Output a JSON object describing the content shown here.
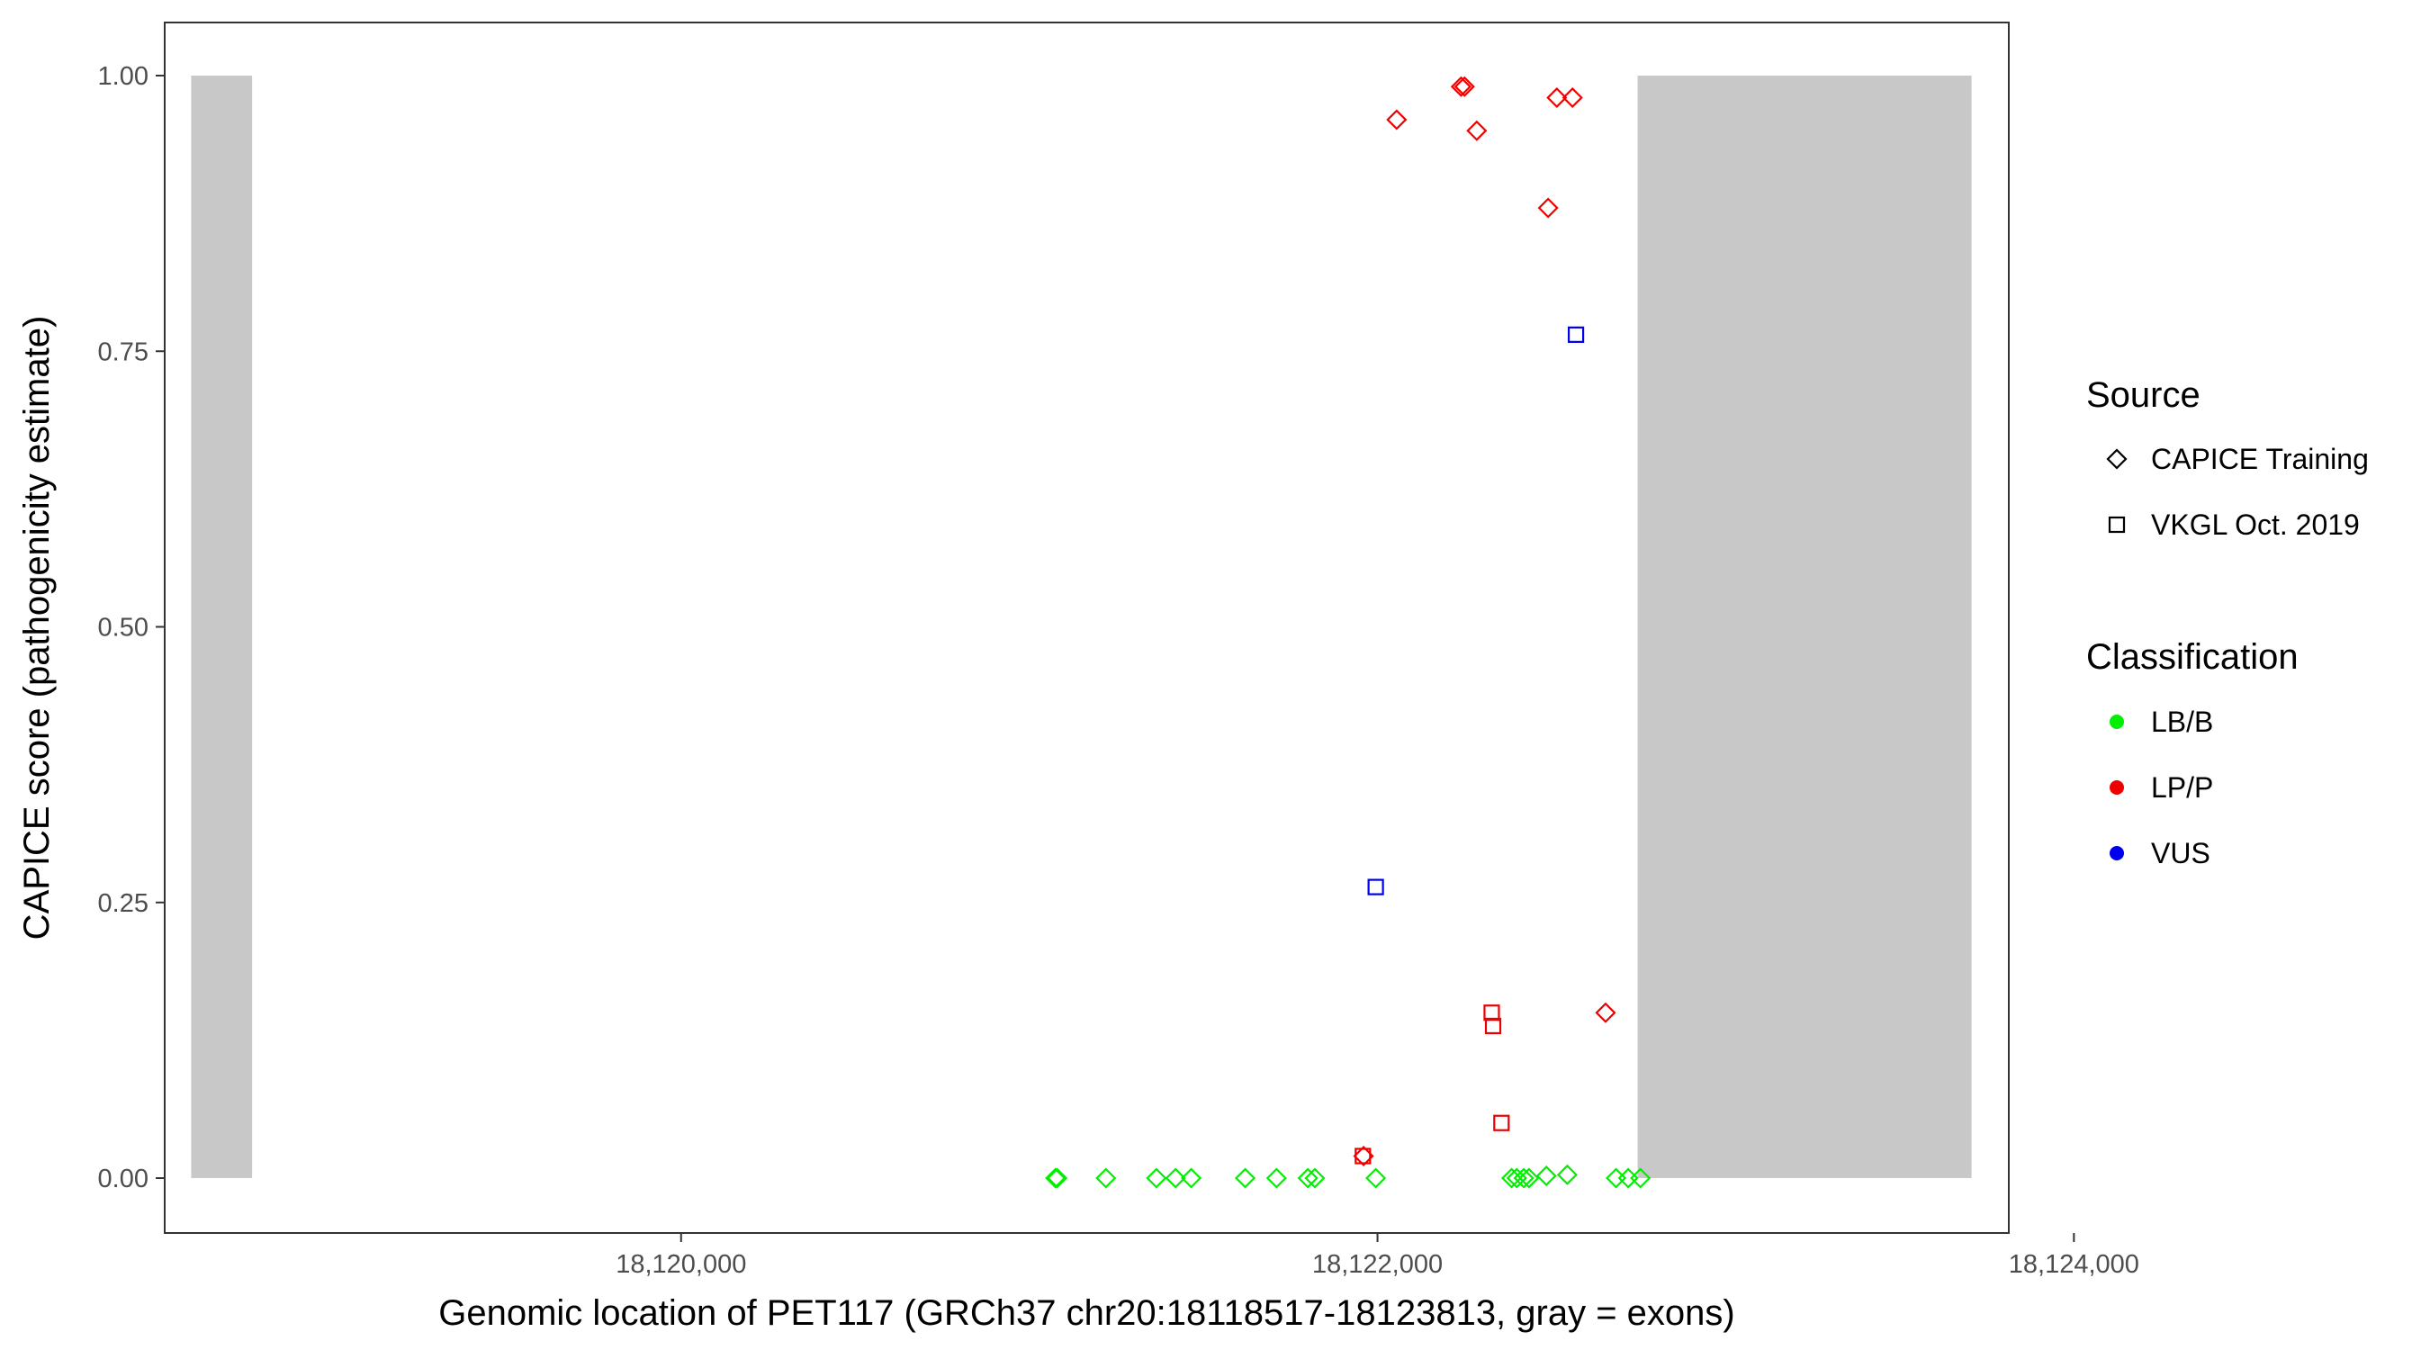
{
  "chart_data": {
    "type": "scatter",
    "title": "",
    "xlabel": "Genomic location of PET117 (GRCh37 chr20:18118517-18123813, gray = exons)",
    "ylabel": "CAPICE score (pathogenicity estimate)",
    "xlim": [
      18118517,
      18123813
    ],
    "ylim": [
      0,
      1
    ],
    "x_ticks": [
      {
        "value": 18120000,
        "label": "18,120,000"
      },
      {
        "value": 18122000,
        "label": "18,122,000"
      },
      {
        "value": 18124000,
        "label": "18,124,000"
      }
    ],
    "y_ticks": [
      {
        "value": 0,
        "label": "0.00"
      },
      {
        "value": 0.25,
        "label": "0.25"
      },
      {
        "value": 0.5,
        "label": "0.50"
      },
      {
        "value": 0.75,
        "label": "0.75"
      },
      {
        "value": 1,
        "label": "1.00"
      }
    ],
    "grid": false,
    "exons": [
      {
        "start": 18118593,
        "end": 18118768
      },
      {
        "start": 18122747,
        "end": 18123706
      }
    ],
    "exon_color": "#c8c8c8",
    "points": [
      {
        "x": 18121075,
        "y": 0.0,
        "source": "CAPICE Training",
        "class": "LB/B"
      },
      {
        "x": 18121080,
        "y": 0.0,
        "source": "CAPICE Training",
        "class": "LB/B"
      },
      {
        "x": 18121220,
        "y": 0.0,
        "source": "CAPICE Training",
        "class": "LB/B"
      },
      {
        "x": 18121365,
        "y": 0.0,
        "source": "CAPICE Training",
        "class": "LB/B"
      },
      {
        "x": 18121420,
        "y": 0.0,
        "source": "CAPICE Training",
        "class": "LB/B"
      },
      {
        "x": 18121465,
        "y": 0.0,
        "source": "CAPICE Training",
        "class": "LB/B"
      },
      {
        "x": 18121620,
        "y": 0.0,
        "source": "CAPICE Training",
        "class": "LB/B"
      },
      {
        "x": 18121710,
        "y": 0.0,
        "source": "CAPICE Training",
        "class": "LB/B"
      },
      {
        "x": 18121800,
        "y": 0.0,
        "source": "CAPICE Training",
        "class": "LB/B"
      },
      {
        "x": 18121820,
        "y": 0.0,
        "source": "CAPICE Training",
        "class": "LB/B"
      },
      {
        "x": 18121995,
        "y": 0.0,
        "source": "CAPICE Training",
        "class": "LB/B"
      },
      {
        "x": 18122385,
        "y": 0.0,
        "source": "CAPICE Training",
        "class": "LB/B"
      },
      {
        "x": 18122400,
        "y": 0.0,
        "source": "CAPICE Training",
        "class": "LB/B"
      },
      {
        "x": 18122420,
        "y": 0.0,
        "source": "CAPICE Training",
        "class": "LB/B"
      },
      {
        "x": 18122435,
        "y": 0.0,
        "source": "CAPICE Training",
        "class": "LB/B"
      },
      {
        "x": 18122485,
        "y": 0.002,
        "source": "CAPICE Training",
        "class": "LB/B"
      },
      {
        "x": 18122545,
        "y": 0.003,
        "source": "CAPICE Training",
        "class": "LB/B"
      },
      {
        "x": 18122685,
        "y": 0.0,
        "source": "CAPICE Training",
        "class": "LB/B"
      },
      {
        "x": 18122720,
        "y": 0.0,
        "source": "CAPICE Training",
        "class": "LB/B"
      },
      {
        "x": 18122755,
        "y": 0.0,
        "source": "CAPICE Training",
        "class": "LB/B"
      },
      {
        "x": 18121960,
        "y": 0.02,
        "source": "CAPICE Training",
        "class": "LP/P"
      },
      {
        "x": 18122055,
        "y": 0.96,
        "source": "CAPICE Training",
        "class": "LP/P"
      },
      {
        "x": 18122240,
        "y": 0.99,
        "source": "CAPICE Training",
        "class": "LP/P"
      },
      {
        "x": 18122250,
        "y": 0.99,
        "source": "CAPICE Training",
        "class": "LP/P"
      },
      {
        "x": 18122285,
        "y": 0.95,
        "source": "CAPICE Training",
        "class": "LP/P"
      },
      {
        "x": 18122490,
        "y": 0.88,
        "source": "CAPICE Training",
        "class": "LP/P"
      },
      {
        "x": 18122515,
        "y": 0.98,
        "source": "CAPICE Training",
        "class": "LP/P"
      },
      {
        "x": 18122560,
        "y": 0.98,
        "source": "CAPICE Training",
        "class": "LP/P"
      },
      {
        "x": 18122655,
        "y": 0.15,
        "source": "CAPICE Training",
        "class": "LP/P"
      },
      {
        "x": 18121958,
        "y": 0.02,
        "source": "VKGL Oct. 2019",
        "class": "LP/P"
      },
      {
        "x": 18122328,
        "y": 0.15,
        "source": "VKGL Oct. 2019",
        "class": "LP/P"
      },
      {
        "x": 18122332,
        "y": 0.138,
        "source": "VKGL Oct. 2019",
        "class": "LP/P"
      },
      {
        "x": 18122356,
        "y": 0.05,
        "source": "VKGL Oct. 2019",
        "class": "LP/P"
      },
      {
        "x": 18121995,
        "y": 0.264,
        "source": "VKGL Oct. 2019",
        "class": "VUS"
      },
      {
        "x": 18122570,
        "y": 0.765,
        "source": "VKGL Oct. 2019",
        "class": "VUS"
      }
    ],
    "legend": {
      "placement": "right",
      "source_title": "Source",
      "source_items": [
        {
          "label": "CAPICE Training",
          "shape": "diamond"
        },
        {
          "label": "VKGL Oct. 2019",
          "shape": "square"
        }
      ],
      "class_title": "Classification",
      "class_items": [
        {
          "label": "LB/B",
          "color": "#00ee00"
        },
        {
          "label": "LP/P",
          "color": "#ee0000"
        },
        {
          "label": "VUS",
          "color": "#0000ee"
        }
      ]
    }
  }
}
